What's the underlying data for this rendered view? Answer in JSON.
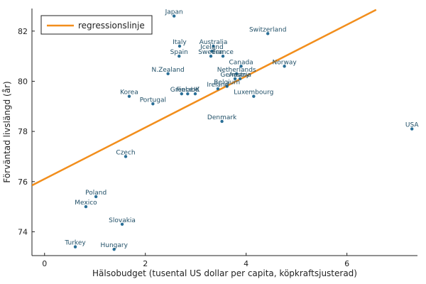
{
  "chart_data": {
    "type": "scatter",
    "xlabel": "Hälsobudget (tusental US dollar per capita, köpkraftsjusterad)",
    "ylabel": "Förväntad livslängd (år)",
    "xlim": [
      -0.25,
      7.4
    ],
    "ylim": [
      73.05,
      82.9
    ],
    "xticks": [
      0,
      2,
      4,
      6
    ],
    "yticks": [
      74,
      76,
      78,
      80,
      82
    ],
    "grid": false,
    "legend": {
      "position": "top-left",
      "entries": [
        "regressionslinje"
      ]
    },
    "colors": {
      "points": "#2a6f97",
      "line": "#f28e1c",
      "text": "#1f4e66"
    },
    "series": [
      {
        "type": "scatter",
        "points": [
          {
            "label": "Japan",
            "x": 2.57,
            "y": 82.6
          },
          {
            "label": "Switzerland",
            "x": 4.43,
            "y": 81.9
          },
          {
            "label": "Italy",
            "x": 2.68,
            "y": 81.4
          },
          {
            "label": "Australia",
            "x": 3.35,
            "y": 81.4
          },
          {
            "label": "Iceland",
            "x": 3.32,
            "y": 81.2
          },
          {
            "label": "Spain",
            "x": 2.67,
            "y": 81.0
          },
          {
            "label": "Sweden",
            "x": 3.3,
            "y": 81.0
          },
          {
            "label": "France",
            "x": 3.54,
            "y": 81.0
          },
          {
            "label": "Canada",
            "x": 3.9,
            "y": 80.6
          },
          {
            "label": "Norway",
            "x": 4.76,
            "y": 80.6
          },
          {
            "label": "N.Zealand",
            "x": 2.45,
            "y": 80.3
          },
          {
            "label": "Netherlands",
            "x": 3.81,
            "y": 80.3
          },
          {
            "label": "Germany",
            "x": 3.78,
            "y": 80.1
          },
          {
            "label": "Austria",
            "x": 3.88,
            "y": 80.1
          },
          {
            "label": "Belgium",
            "x": 3.62,
            "y": 79.8
          },
          {
            "label": "Ireland",
            "x": 3.44,
            "y": 79.7
          },
          {
            "label": "Greece",
            "x": 2.72,
            "y": 79.5
          },
          {
            "label": "Finland",
            "x": 2.84,
            "y": 79.5
          },
          {
            "label": "UK",
            "x": 2.99,
            "y": 79.5
          },
          {
            "label": "Korea",
            "x": 1.68,
            "y": 79.4
          },
          {
            "label": "Luxembourg",
            "x": 4.15,
            "y": 79.4
          },
          {
            "label": "Portugal",
            "x": 2.15,
            "y": 79.1
          },
          {
            "label": "Denmark",
            "x": 3.52,
            "y": 78.4
          },
          {
            "label": "USA",
            "x": 7.29,
            "y": 78.1
          },
          {
            "label": "Czech",
            "x": 1.61,
            "y": 77.0
          },
          {
            "label": "Poland",
            "x": 1.02,
            "y": 75.4
          },
          {
            "label": "Mexico",
            "x": 0.82,
            "y": 75.0
          },
          {
            "label": "Slovakia",
            "x": 1.54,
            "y": 74.3
          },
          {
            "label": "Turkey",
            "x": 0.61,
            "y": 73.4
          },
          {
            "label": "Hungary",
            "x": 1.38,
            "y": 73.3
          }
        ]
      },
      {
        "type": "line",
        "name": "regressionslinje",
        "x": [
          -0.25,
          6.58
        ],
        "y": [
          75.85,
          82.85
        ]
      }
    ]
  }
}
